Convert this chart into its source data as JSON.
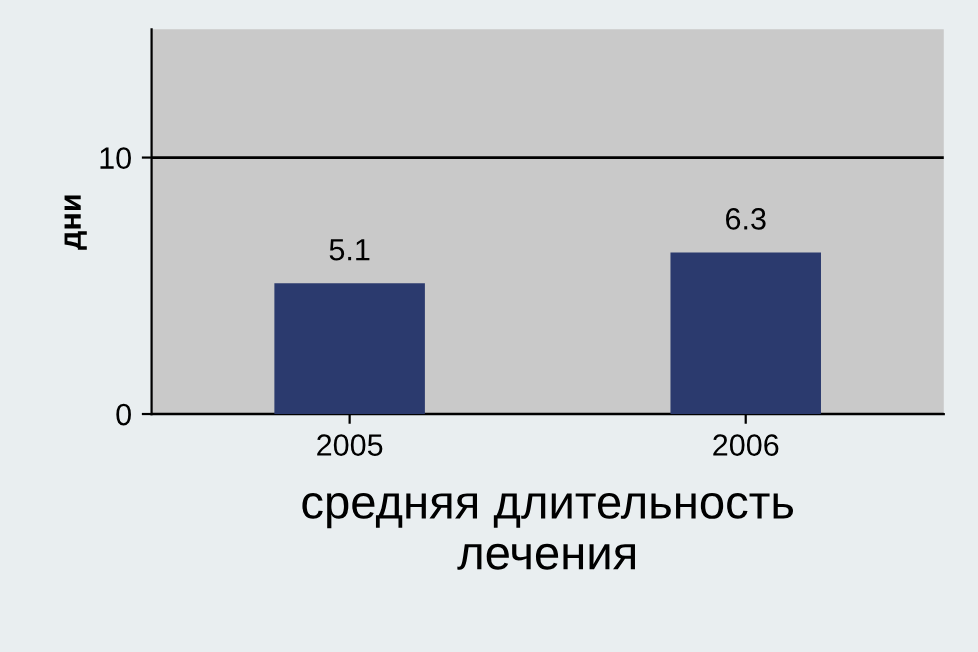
{
  "chart_data": {
    "type": "bar",
    "categories": [
      "2005",
      "2006"
    ],
    "values": [
      5.1,
      6.3
    ],
    "color": "#2b3a6e",
    "ylim": [
      0,
      15
    ],
    "yticks": [
      0,
      10
    ],
    "grid": "y",
    "data_labels": true,
    "ylabel": "дни",
    "xlabel": "средняя длительность\nлечения"
  }
}
